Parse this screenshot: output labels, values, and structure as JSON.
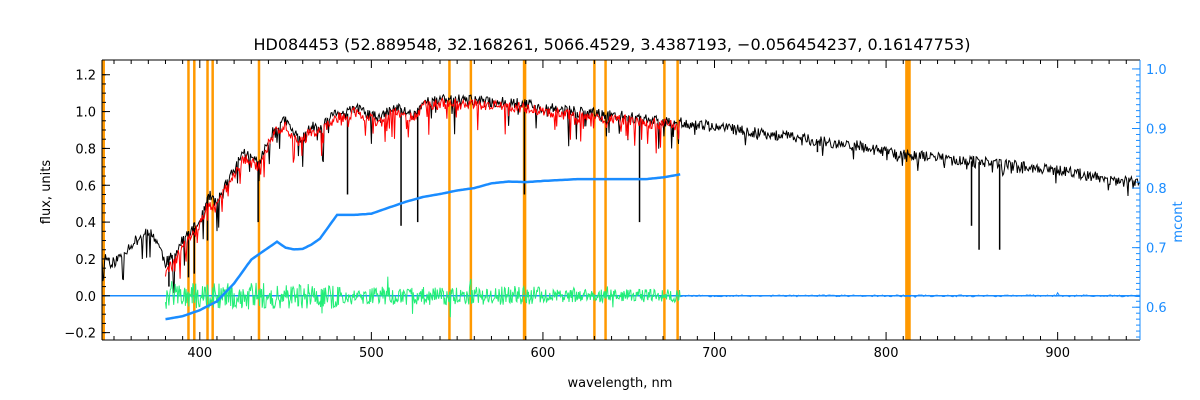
{
  "chart_data": {
    "type": "line",
    "title": "HD084453   (52.889548, 32.168261, 5066.4529, 3.4387193, −0.056454237, 0.16147753)",
    "xlabel": "wavelength, nm",
    "ylabel": "flux, units",
    "y2label": "mcont",
    "xlim": [
      343,
      948
    ],
    "ylim": [
      -0.24,
      1.28
    ],
    "y2lim": [
      0.545,
      1.015
    ],
    "x_ticks": [
      400,
      500,
      600,
      700,
      800,
      900
    ],
    "y_ticks": [
      -0.2,
      0.0,
      0.2,
      0.4,
      0.6,
      0.8,
      1.0,
      1.2
    ],
    "y2_ticks": [
      0.6,
      0.7,
      0.8,
      0.9,
      1.0
    ],
    "x_tick_labels": [
      "400",
      "500",
      "600",
      "700",
      "800",
      "900"
    ],
    "y_tick_labels": [
      "−0.2",
      "0.0",
      "0.2",
      "0.4",
      "0.6",
      "0.8",
      "1.0",
      "1.2"
    ],
    "y2_tick_labels": [
      "0.6",
      "0.7",
      "0.8",
      "0.9",
      "1.0"
    ],
    "colors": {
      "observed": "#000000",
      "model": "#ff0000",
      "residual": "#22ee77",
      "continuum": "#1a8cff",
      "mask": "#ff9900",
      "right_axis": "#1a8cff"
    },
    "mask_lines": [
      344,
      393.4,
      396.8,
      404.5,
      407.5,
      434.5,
      545.5,
      558.0,
      589.0,
      589.6,
      630.0,
      636.5,
      670.8,
      678.5,
      812.0,
      813.5
    ],
    "series": [
      {
        "role": "observed",
        "x": [
          343,
          350,
          360,
          370,
          375,
          380,
          385,
          390,
          395,
          400,
          405,
          410,
          415,
          420,
          425,
          430,
          435,
          440,
          445,
          450,
          455,
          460,
          465,
          470,
          475,
          480,
          485,
          490,
          495,
          500,
          505,
          510,
          515,
          520,
          525,
          530,
          540,
          550,
          560,
          570,
          580,
          590,
          600,
          610,
          620,
          630,
          640,
          650,
          660,
          670,
          680,
          690,
          700,
          720,
          740,
          760,
          780,
          800,
          820,
          840,
          860,
          880,
          900,
          920,
          940,
          948
        ],
        "y": [
          0.22,
          0.18,
          0.28,
          0.35,
          0.3,
          0.18,
          0.22,
          0.3,
          0.35,
          0.4,
          0.55,
          0.5,
          0.6,
          0.68,
          0.78,
          0.75,
          0.72,
          0.85,
          0.92,
          0.95,
          0.88,
          0.85,
          0.92,
          0.9,
          0.95,
          1.0,
          0.98,
          1.02,
          1.0,
          0.98,
          0.96,
          1.0,
          1.02,
          1.0,
          0.98,
          1.05,
          1.06,
          1.07,
          1.06,
          1.05,
          1.05,
          1.04,
          1.02,
          1.01,
          1.0,
          0.99,
          0.98,
          0.97,
          0.96,
          0.95,
          0.94,
          0.93,
          0.92,
          0.89,
          0.87,
          0.84,
          0.82,
          0.78,
          0.76,
          0.74,
          0.72,
          0.7,
          0.68,
          0.65,
          0.62,
          0.62
        ],
        "absorption_dips": [
          {
            "x": 382,
            "y": 0.05
          },
          {
            "x": 393.4,
            "y": 0.1
          },
          {
            "x": 396.8,
            "y": 0.12
          },
          {
            "x": 404.5,
            "y": 0.3
          },
          {
            "x": 434.0,
            "y": 0.4
          },
          {
            "x": 486.1,
            "y": 0.55
          },
          {
            "x": 517.3,
            "y": 0.38
          },
          {
            "x": 527.0,
            "y": 0.4
          },
          {
            "x": 589.2,
            "y": 0.55
          },
          {
            "x": 656.3,
            "y": 0.4
          },
          {
            "x": 760.0,
            "y": 0.78
          },
          {
            "x": 849.8,
            "y": 0.38
          },
          {
            "x": 854.2,
            "y": 0.25
          },
          {
            "x": 866.2,
            "y": 0.25
          }
        ]
      },
      {
        "role": "model",
        "x": [
          380,
          385,
          390,
          395,
          400,
          405,
          410,
          415,
          420,
          425,
          430,
          435,
          440,
          445,
          450,
          455,
          460,
          465,
          470,
          475,
          480,
          485,
          490,
          495,
          500,
          505,
          510,
          515,
          520,
          525,
          530,
          540,
          550,
          560,
          570,
          580,
          590,
          600,
          610,
          620,
          630,
          640,
          650,
          660,
          670,
          680
        ],
        "y": [
          0.12,
          0.18,
          0.26,
          0.32,
          0.38,
          0.5,
          0.48,
          0.58,
          0.65,
          0.75,
          0.72,
          0.7,
          0.82,
          0.9,
          0.92,
          0.86,
          0.84,
          0.9,
          0.88,
          0.93,
          0.97,
          0.96,
          1.0,
          0.98,
          0.96,
          0.94,
          0.98,
          1.0,
          0.98,
          0.96,
          1.03,
          1.04,
          1.05,
          1.04,
          1.03,
          1.03,
          1.02,
          1.0,
          0.99,
          0.98,
          0.97,
          0.96,
          0.95,
          0.94,
          0.93,
          0.92
        ]
      },
      {
        "role": "residual",
        "x_range": [
          380,
          680
        ],
        "center": 0.0,
        "amplitude": 0.07
      },
      {
        "role": "residual_tail",
        "x_range": [
          680,
          948
        ],
        "center": 0.0,
        "amplitude": 0.01
      },
      {
        "role": "continuum",
        "axis": "right",
        "x": [
          380,
          390,
          400,
          410,
          420,
          430,
          440,
          445,
          450,
          455,
          460,
          465,
          470,
          480,
          490,
          500,
          510,
          520,
          530,
          540,
          550,
          560,
          570,
          580,
          590,
          600,
          620,
          640,
          660,
          670,
          680
        ],
        "y": [
          0.58,
          0.585,
          0.595,
          0.61,
          0.64,
          0.68,
          0.7,
          0.71,
          0.7,
          0.697,
          0.698,
          0.705,
          0.715,
          0.755,
          0.755,
          0.757,
          0.767,
          0.777,
          0.785,
          0.79,
          0.796,
          0.8,
          0.808,
          0.811,
          0.81,
          0.812,
          0.815,
          0.815,
          0.815,
          0.818,
          0.823
        ]
      },
      {
        "role": "zero_line",
        "x": [
          343,
          948
        ],
        "y": [
          0.0,
          0.0
        ]
      }
    ]
  }
}
